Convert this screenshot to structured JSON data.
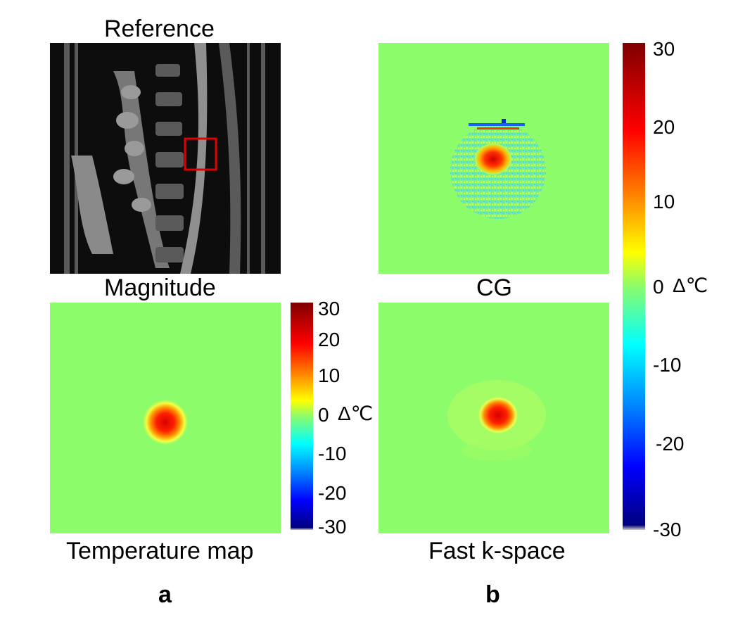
{
  "left_panel": {
    "reference_title": "Reference",
    "magnitude_title": "Magnitude",
    "temperature_title": "Temperature map",
    "panel_letter": "a",
    "colorbar": {
      "ticks": [
        "30",
        "20",
        "10",
        "0",
        "-10",
        "-20",
        "-30"
      ],
      "unit": "Δ℃"
    }
  },
  "right_panel": {
    "cg_title": "CG",
    "fast_title": "Fast k-space",
    "panel_letter": "b",
    "colorbar": {
      "ticks": [
        "30",
        "20",
        "10",
        "0",
        "-10",
        "-20",
        "-30"
      ],
      "unit": "Δ℃"
    }
  },
  "colors": {
    "background_green": "#8cfc6a",
    "roi_box": "#e00000"
  }
}
